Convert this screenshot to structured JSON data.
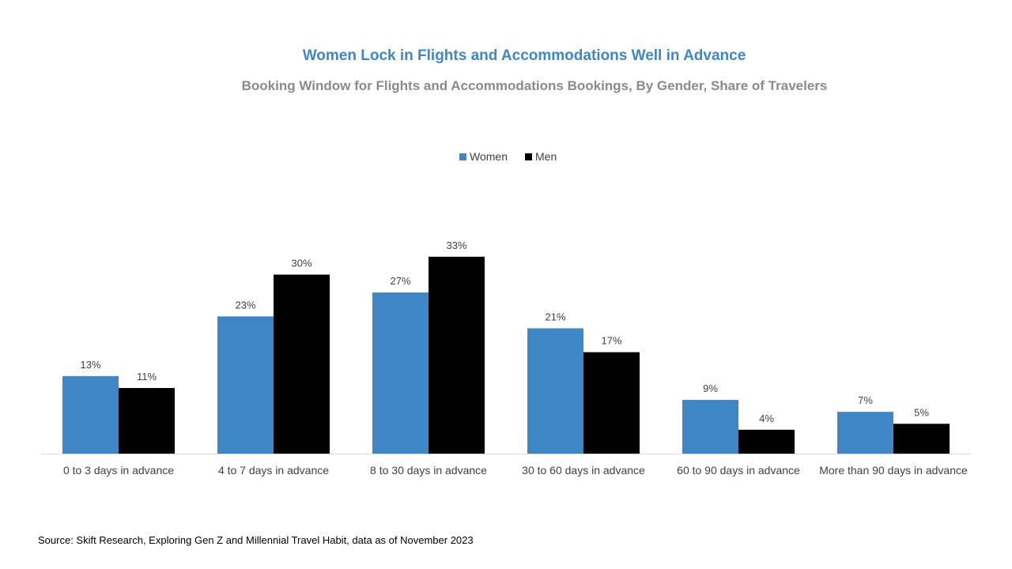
{
  "chart_data": {
    "type": "bar",
    "title": "Women Lock in Flights and Accommodations Well in Advance",
    "subtitle": "Booking Window for Flights and Accommodations Bookings, By Gender, Share of Travelers",
    "categories": [
      "0 to 3 days in advance",
      "4 to 7 days in advance",
      "8 to 30 days in advance",
      "30 to 60 days in advance",
      "60 to 90 days in advance",
      "More than 90 days in advance"
    ],
    "series": [
      {
        "name": "Women",
        "color": "#3f86c6",
        "values": [
          13,
          23,
          27,
          21,
          9,
          7
        ],
        "labels": [
          "13%",
          "23%",
          "27%",
          "21%",
          "9%",
          "7%"
        ]
      },
      {
        "name": "Men",
        "color": "#000000",
        "values": [
          11,
          30,
          33,
          17,
          4,
          5
        ],
        "labels": [
          "11%",
          "30%",
          "33%",
          "17%",
          "4%",
          "5%"
        ]
      }
    ],
    "ylim": [
      0,
      36
    ],
    "grid": false,
    "legend_position": "top-center",
    "axis_color": "#d9d9d9"
  },
  "source": "Source: Skift Research, Exploring Gen Z and Millennial Travel Habit, data as of November 2023"
}
